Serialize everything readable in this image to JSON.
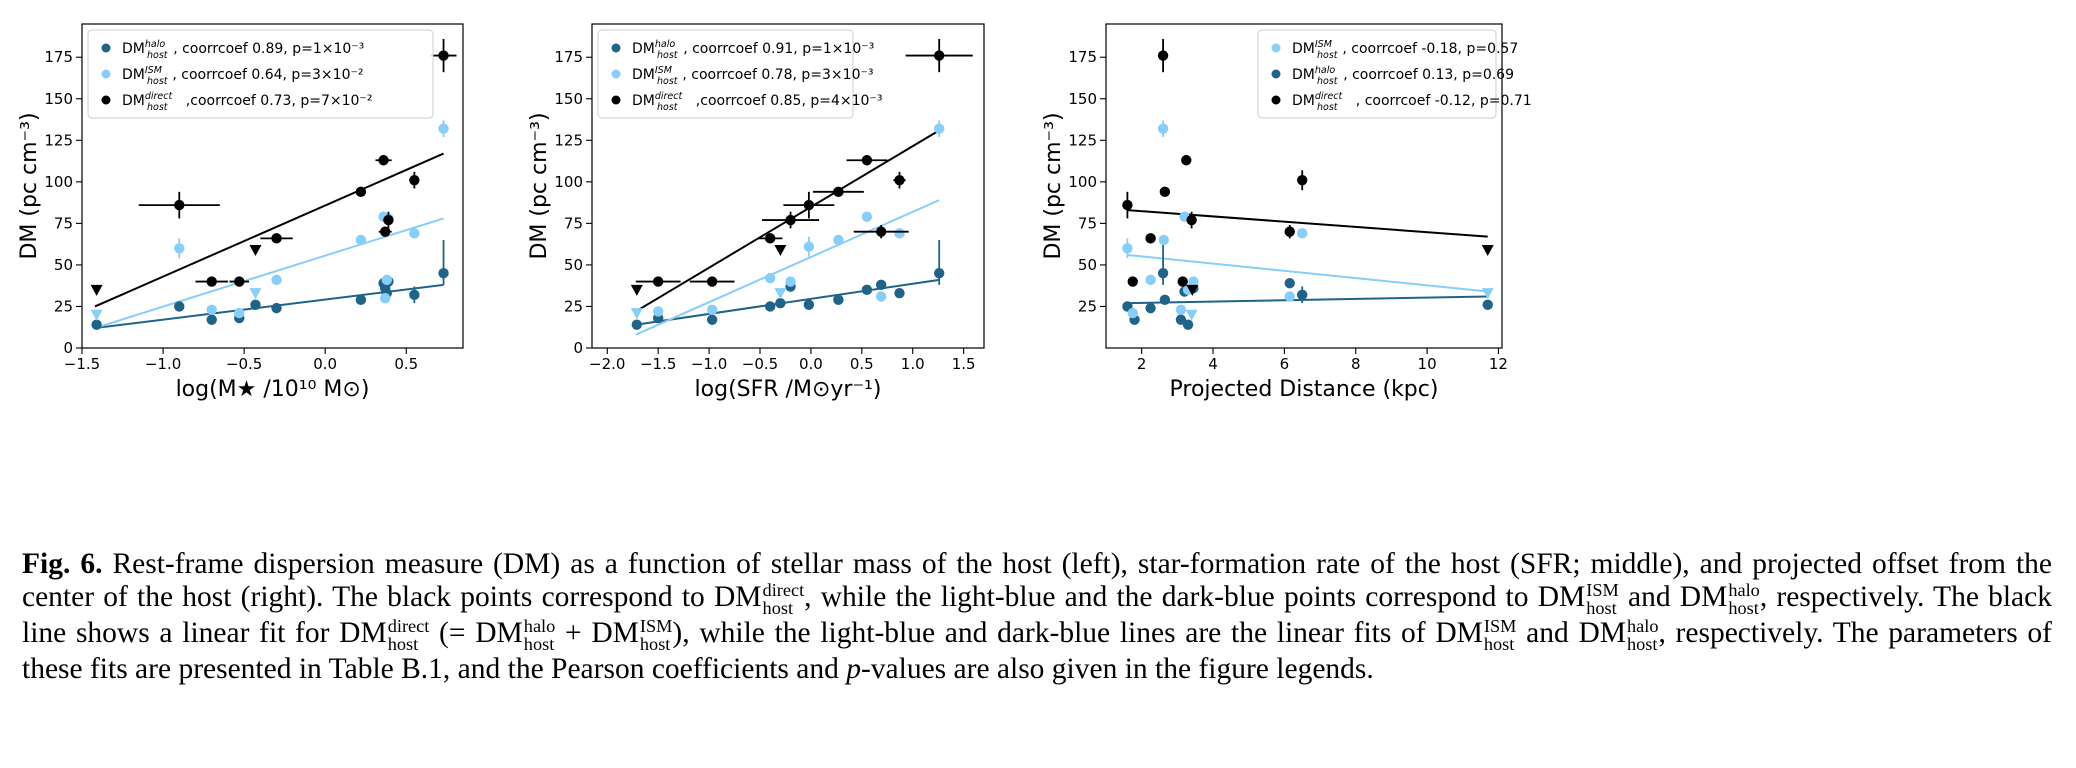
{
  "colors": {
    "direct": "#000000",
    "ism": "#87cefa",
    "halo": "#1f6388"
  },
  "panels": [
    {
      "id": "mass",
      "xlabel": "log(M★ /10¹⁰ M⊙)",
      "ylabel": "DM (pc cm⁻³)",
      "legend": [
        {
          "series": "halo",
          "sup": "halo",
          "text": ", coorrcoef 0.89, p=1×10⁻³"
        },
        {
          "series": "ism",
          "sup": "ISM",
          "text": ", coorrcoef 0.64, p=3×10⁻²"
        },
        {
          "series": "direct",
          "sup": "direct",
          "text": ",coorrcoef 0.73, p=7×10⁻²"
        }
      ]
    },
    {
      "id": "sfr",
      "xlabel": "log(SFR /M⊙yr⁻¹)",
      "ylabel": "DM (pc cm⁻³)",
      "legend": [
        {
          "series": "halo",
          "sup": "halo",
          "text": ", coorrcoef 0.91, p=1×10⁻³"
        },
        {
          "series": "ism",
          "sup": "ISM",
          "text": ", coorrcoef 0.78, p=3×10⁻³"
        },
        {
          "series": "direct",
          "sup": "direct",
          "text": ",coorrcoef 0.85, p=4×10⁻³"
        }
      ]
    },
    {
      "id": "dist",
      "xlabel": "Projected Distance (kpc)",
      "ylabel": "DM (pc cm⁻³)",
      "legend": [
        {
          "series": "ism",
          "sup": "ISM",
          "text": ", coorrcoef -0.18, p=0.57"
        },
        {
          "series": "halo",
          "sup": "halo",
          "text": ", coorrcoef 0.13, p=0.69"
        },
        {
          "series": "direct",
          "sup": "direct",
          "text": ", coorrcoef -0.12, p=0.71"
        }
      ]
    }
  ],
  "legend_prefix": "DM",
  "legend_sub": "host",
  "chart_data": [
    {
      "type": "scatter",
      "xlabel": "log(M★ /10¹⁰ M⊙)",
      "ylabel": "DM (pc cm⁻³)",
      "xlim": [
        -1.5,
        0.85
      ],
      "ylim": [
        0,
        195
      ],
      "xticks": [
        -1.5,
        -1.0,
        -0.5,
        0.0,
        0.5
      ],
      "xticklabels": [
        "−1.5",
        "−1.0",
        "−0.5",
        "0.0",
        "0.5"
      ],
      "yticks": [
        0,
        25,
        50,
        75,
        100,
        125,
        150,
        175
      ],
      "yticklabels": [
        "0",
        "25",
        "50",
        "75",
        "100",
        "125",
        "150",
        "175"
      ],
      "legend_position": "upper-left",
      "series": [
        {
          "name": "DMhalo host",
          "key": "halo",
          "fit": [
            [
              -1.42,
              12
            ],
            [
              0.73,
              38
            ]
          ],
          "points": [
            {
              "x": -1.41,
              "y": 14
            },
            {
              "x": -0.9,
              "y": 25,
              "yerr": 3
            },
            {
              "x": -0.7,
              "y": 17
            },
            {
              "x": -0.53,
              "y": 18
            },
            {
              "x": -0.43,
              "y": 26
            },
            {
              "x": -0.3,
              "y": 24
            },
            {
              "x": 0.22,
              "y": 29
            },
            {
              "x": 0.36,
              "y": 39
            },
            {
              "x": 0.37,
              "y": 36
            },
            {
              "x": 0.38,
              "y": 33
            },
            {
              "x": 0.39,
              "y": 40
            },
            {
              "x": 0.55,
              "y": 32,
              "yerr": 5
            },
            {
              "x": 0.73,
              "y": 45,
              "yerr": [
                7,
                20
              ]
            }
          ]
        },
        {
          "name": "DMISM host",
          "key": "ism",
          "fit": [
            [
              -1.42,
              12
            ],
            [
              0.73,
              78
            ]
          ],
          "points": [
            {
              "x": -1.41,
              "y": 20,
              "marker": "triangle"
            },
            {
              "x": -0.9,
              "y": 60,
              "yerr": 6
            },
            {
              "x": -0.7,
              "y": 23
            },
            {
              "x": -0.53,
              "y": 21
            },
            {
              "x": -0.43,
              "y": 33,
              "marker": "triangle"
            },
            {
              "x": -0.3,
              "y": 41
            },
            {
              "x": 0.22,
              "y": 65
            },
            {
              "x": 0.36,
              "y": 79
            },
            {
              "x": 0.37,
              "y": 30
            },
            {
              "x": 0.38,
              "y": 41
            },
            {
              "x": 0.39,
              "y": 78
            },
            {
              "x": 0.55,
              "y": 69
            },
            {
              "x": 0.73,
              "y": 132,
              "yerr": 5
            }
          ]
        },
        {
          "name": "DMdirect host",
          "key": "direct",
          "fit": [
            [
              -1.42,
              25
            ],
            [
              0.73,
              117
            ]
          ],
          "points": [
            {
              "x": -1.41,
              "y": 35,
              "marker": "triangle"
            },
            {
              "x": -0.9,
              "y": 86,
              "xerr": 0.25,
              "yerr": 8
            },
            {
              "x": -0.7,
              "y": 40,
              "xerr": 0.1
            },
            {
              "x": -0.53,
              "y": 40,
              "xerr": 0.06
            },
            {
              "x": -0.43,
              "y": 59,
              "marker": "triangle"
            },
            {
              "x": -0.3,
              "y": 66,
              "xerr": 0.1
            },
            {
              "x": 0.22,
              "y": 94,
              "xerr": 0.03
            },
            {
              "x": 0.36,
              "y": 113,
              "xerr": 0.05,
              "yerr": 3
            },
            {
              "x": 0.37,
              "y": 70,
              "xerr": 0.04,
              "yerr": 3
            },
            {
              "x": 0.39,
              "y": 77,
              "yerr": 5
            },
            {
              "x": 0.55,
              "y": 101,
              "yerr": 5
            },
            {
              "x": 0.73,
              "y": 176,
              "xerr": 0.08,
              "yerr": 10
            }
          ]
        }
      ]
    },
    {
      "type": "scatter",
      "xlabel": "log(SFR /M⊙yr⁻¹)",
      "ylabel": "DM (pc cm⁻³)",
      "xlim": [
        -2.15,
        1.7
      ],
      "ylim": [
        0,
        195
      ],
      "xticks": [
        -2.0,
        -1.5,
        -1.0,
        -0.5,
        0.0,
        0.5,
        1.0,
        1.5
      ],
      "xticklabels": [
        "−2.0",
        "−1.5",
        "−1.0",
        "−0.5",
        "0.0",
        "0.5",
        "1.0",
        "1.5"
      ],
      "yticks": [
        0,
        25,
        50,
        75,
        100,
        125,
        150,
        175
      ],
      "yticklabels": [
        "0",
        "25",
        "50",
        "75",
        "100",
        "125",
        "150",
        "175"
      ],
      "legend_position": "upper-left",
      "series": [
        {
          "name": "DMhalo host",
          "key": "halo",
          "fit": [
            [
              -1.72,
              14
            ],
            [
              1.26,
              41
            ]
          ],
          "points": [
            {
              "x": -1.71,
              "y": 14
            },
            {
              "x": -1.5,
              "y": 18
            },
            {
              "x": -0.97,
              "y": 17
            },
            {
              "x": -0.4,
              "y": 25
            },
            {
              "x": -0.3,
              "y": 27
            },
            {
              "x": -0.2,
              "y": 37
            },
            {
              "x": -0.02,
              "y": 26
            },
            {
              "x": 0.27,
              "y": 29
            },
            {
              "x": 0.55,
              "y": 35
            },
            {
              "x": 0.69,
              "y": 38
            },
            {
              "x": 0.87,
              "y": 33
            },
            {
              "x": 1.26,
              "y": 45,
              "yerr": [
                7,
                20
              ]
            }
          ]
        },
        {
          "name": "DMISM host",
          "key": "ism",
          "fit": [
            [
              -1.72,
              8
            ],
            [
              1.26,
              89
            ]
          ],
          "points": [
            {
              "x": -1.71,
              "y": 21,
              "marker": "triangle"
            },
            {
              "x": -1.5,
              "y": 22
            },
            {
              "x": -0.97,
              "y": 23
            },
            {
              "x": -0.4,
              "y": 42
            },
            {
              "x": -0.3,
              "y": 33,
              "marker": "triangle"
            },
            {
              "x": -0.2,
              "y": 40
            },
            {
              "x": -0.02,
              "y": 61,
              "yerr": 6
            },
            {
              "x": 0.27,
              "y": 65
            },
            {
              "x": 0.55,
              "y": 79
            },
            {
              "x": 0.69,
              "y": 31
            },
            {
              "x": 0.87,
              "y": 69
            },
            {
              "x": 1.26,
              "y": 132,
              "yerr": 5
            }
          ]
        },
        {
          "name": "DMdirect host",
          "key": "direct",
          "fit": [
            [
              -1.72,
              22
            ],
            [
              1.26,
              131
            ]
          ],
          "points": [
            {
              "x": -1.71,
              "y": 35,
              "marker": "triangle"
            },
            {
              "x": -1.5,
              "y": 40,
              "xerr": 0.22
            },
            {
              "x": -0.97,
              "y": 40,
              "xerr": 0.22
            },
            {
              "x": -0.4,
              "y": 66,
              "xerr": 0.12,
              "yerr": 3
            },
            {
              "x": -0.3,
              "y": 59,
              "marker": "triangle"
            },
            {
              "x": -0.2,
              "y": 77,
              "xerr": 0.28,
              "yerr": 5
            },
            {
              "x": -0.02,
              "y": 86,
              "xerr": 0.25,
              "yerr": 8
            },
            {
              "x": 0.27,
              "y": 94,
              "xerr": 0.25
            },
            {
              "x": 0.55,
              "y": 113,
              "xerr": 0.2,
              "yerr": 3
            },
            {
              "x": 0.69,
              "y": 70,
              "xerr": 0.27,
              "yerr": 4
            },
            {
              "x": 0.87,
              "y": 101,
              "xerr": 0.06,
              "yerr": 5
            },
            {
              "x": 1.26,
              "y": 176,
              "xerr": 0.33,
              "yerr": 10
            }
          ]
        }
      ]
    },
    {
      "type": "scatter",
      "xlabel": "Projected Distance (kpc)",
      "ylabel": "DM (pc cm⁻³)",
      "xlim": [
        1.0,
        12.1
      ],
      "ylim": [
        0,
        195
      ],
      "xticks": [
        2,
        4,
        6,
        8,
        10,
        12
      ],
      "xticklabels": [
        "2",
        "4",
        "6",
        "8",
        "10",
        "12"
      ],
      "yticks": [
        25,
        50,
        75,
        100,
        125,
        150,
        175
      ],
      "yticklabels": [
        "25",
        "50",
        "75",
        "100",
        "125",
        "150",
        "175"
      ],
      "legend_position": "upper-right",
      "series": [
        {
          "name": "DMISM host",
          "key": "ism",
          "fit": [
            [
              1.6,
              56
            ],
            [
              11.7,
              34
            ]
          ],
          "points": [
            {
              "x": 1.6,
              "y": 60,
              "yerr": 6
            },
            {
              "x": 1.75,
              "y": 21
            },
            {
              "x": 2.25,
              "y": 41
            },
            {
              "x": 2.6,
              "y": 132,
              "yerr": 5
            },
            {
              "x": 2.62,
              "y": 65
            },
            {
              "x": 3.1,
              "y": 23
            },
            {
              "x": 3.2,
              "y": 79
            },
            {
              "x": 3.3,
              "y": 35
            },
            {
              "x": 3.4,
              "y": 20,
              "marker": "triangle"
            },
            {
              "x": 3.45,
              "y": 40
            },
            {
              "x": 6.15,
              "y": 31
            },
            {
              "x": 6.5,
              "y": 69
            },
            {
              "x": 11.7,
              "y": 33,
              "marker": "triangle"
            }
          ]
        },
        {
          "name": "DMhalo host",
          "key": "halo",
          "fit": [
            [
              1.6,
              27
            ],
            [
              11.7,
              31
            ]
          ],
          "points": [
            {
              "x": 1.6,
              "y": 25,
              "yerr": 3
            },
            {
              "x": 1.8,
              "y": 17
            },
            {
              "x": 2.25,
              "y": 24
            },
            {
              "x": 2.6,
              "y": 45,
              "yerr": [
                7,
                20
              ]
            },
            {
              "x": 2.65,
              "y": 29
            },
            {
              "x": 3.1,
              "y": 17
            },
            {
              "x": 3.2,
              "y": 34
            },
            {
              "x": 3.3,
              "y": 14
            },
            {
              "x": 3.45,
              "y": 36
            },
            {
              "x": 6.15,
              "y": 39,
              "yerr": 3
            },
            {
              "x": 6.5,
              "y": 32,
              "yerr": 5
            },
            {
              "x": 11.7,
              "y": 26
            }
          ]
        },
        {
          "name": "DMdirect host",
          "key": "direct",
          "fit": [
            [
              1.6,
              83
            ],
            [
              11.7,
              67
            ]
          ],
          "points": [
            {
              "x": 1.6,
              "y": 86,
              "yerr": 8
            },
            {
              "x": 1.75,
              "y": 40,
              "yerr": 3
            },
            {
              "x": 2.25,
              "y": 66,
              "yerr": 3
            },
            {
              "x": 2.6,
              "y": 176,
              "yerr": 10
            },
            {
              "x": 2.65,
              "y": 94
            },
            {
              "x": 3.15,
              "y": 40
            },
            {
              "x": 3.25,
              "y": 113,
              "yerr": 3
            },
            {
              "x": 3.4,
              "y": 77,
              "yerr": 5
            },
            {
              "x": 3.42,
              "y": 35,
              "marker": "triangle"
            },
            {
              "x": 6.15,
              "y": 70,
              "yerr": 4
            },
            {
              "x": 6.5,
              "y": 101,
              "yerr": 6
            },
            {
              "x": 11.7,
              "y": 59,
              "marker": "triangle"
            }
          ]
        }
      ]
    }
  ],
  "caption": {
    "label": "Fig. 6.",
    "t1": " Rest-frame dispersion measure (DM) as a function of stellar mass of the host (left), star-formation rate of the host (SFR; middle), and projected offset from the center of the host (right). The black points correspond to ",
    "t2": ", while the light-blue and the dark-blue points correspond to ",
    "t3": " and ",
    "t4": ", respectively. The black line shows a linear fit for ",
    "t5": " (= ",
    "t6": " + ",
    "t7": "), while the light-blue and dark-blue lines are the linear fits of ",
    "t8": " and ",
    "t9": ", respectively. The parameters of these fits are presented in Table B.1, and the Pearson coefficients and ",
    "p": "p",
    "t10": "-values are also given in the figure legends.",
    "dm": "DM",
    "host": "host",
    "direct": "direct",
    "halo": "halo",
    "ism": "ISM"
  }
}
